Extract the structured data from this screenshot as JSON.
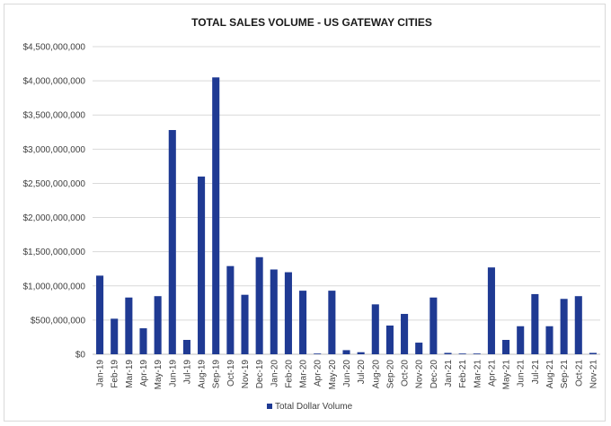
{
  "chart_data": {
    "type": "bar",
    "title": "TOTAL SALES VOLUME   - US GATEWAY CITIES",
    "xlabel": "",
    "ylabel": "",
    "ylim": [
      0,
      4500000000
    ],
    "y_ticks": [
      0,
      500000000,
      1000000000,
      1500000000,
      2000000000,
      2500000000,
      3000000000,
      3500000000,
      4000000000,
      4500000000
    ],
    "y_tick_labels": [
      "$0",
      "$500,000,000",
      "$1,000,000,000",
      "$1,500,000,000",
      "$2,000,000,000",
      "$2,500,000,000",
      "$3,000,000,000",
      "$3,500,000,000",
      "$4,000,000,000",
      "$4,500,000,000"
    ],
    "grid": true,
    "legend_position": "bottom",
    "categories": [
      "Jan-19",
      "Feb-19",
      "Mar-19",
      "Apr-19",
      "May-19",
      "Jun-19",
      "Jul-19",
      "Aug-19",
      "Sep-19",
      "Oct-19",
      "Nov-19",
      "Dec-19",
      "Jan-20",
      "Feb-20",
      "Mar-20",
      "Apr-20",
      "May-20",
      "Jun-20",
      "Jul-20",
      "Aug-20",
      "Sep-20",
      "Oct-20",
      "Nov-20",
      "Dec-20",
      "Jan-21",
      "Feb-21",
      "Mar-21",
      "Apr-21",
      "May-21",
      "Jun-21",
      "Jul-21",
      "Aug-21",
      "Sep-21",
      "Oct-21",
      "Nov-21"
    ],
    "series": [
      {
        "name": "Total Dollar Volume",
        "color": "#1f3a93",
        "values": [
          1150000000,
          520000000,
          830000000,
          380000000,
          850000000,
          3280000000,
          210000000,
          2600000000,
          4050000000,
          1290000000,
          870000000,
          1420000000,
          1240000000,
          1200000000,
          930000000,
          10000000,
          930000000,
          60000000,
          30000000,
          730000000,
          420000000,
          590000000,
          170000000,
          830000000,
          20000000,
          5000000,
          5000000,
          1270000000,
          210000000,
          410000000,
          880000000,
          410000000,
          810000000,
          850000000,
          20000000
        ]
      }
    ]
  },
  "colors": {
    "bar": "#1f3a93",
    "grid": "#d9d9d9",
    "axis": "#bfbfbf"
  }
}
